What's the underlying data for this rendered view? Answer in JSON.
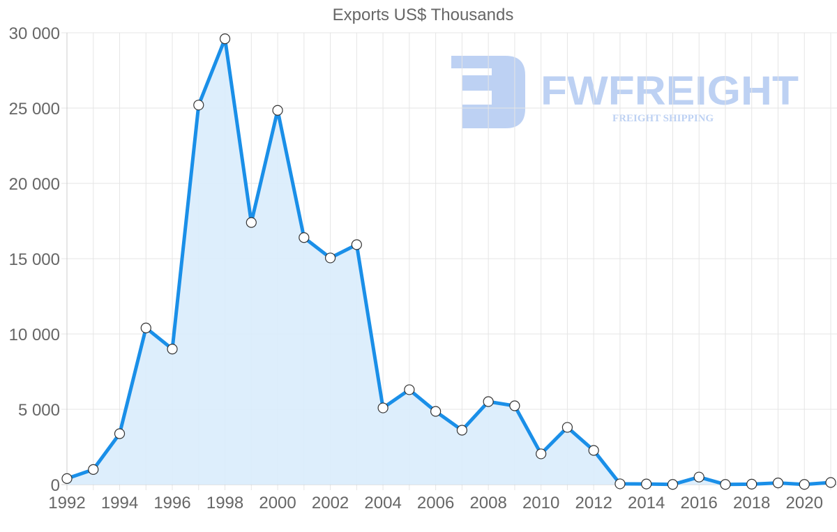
{
  "chart_data": {
    "type": "area",
    "title": "Exports US$ Thousands",
    "xlabel": "",
    "ylabel": "",
    "x": [
      1992,
      1993,
      1994,
      1995,
      1996,
      1997,
      1998,
      1999,
      2000,
      2001,
      2002,
      2003,
      2004,
      2005,
      2006,
      2007,
      2008,
      2009,
      2010,
      2011,
      2012,
      2013,
      2014,
      2015,
      2016,
      2017,
      2018,
      2019,
      2020,
      2021
    ],
    "series": [
      {
        "name": "Exports",
        "values": [
          400,
          1000,
          3380,
          10400,
          9000,
          25200,
          29600,
          17400,
          24850,
          16400,
          15050,
          15930,
          5090,
          6300,
          4860,
          3610,
          5510,
          5230,
          2040,
          3800,
          2270,
          50,
          40,
          10,
          500,
          10,
          30,
          110,
          10,
          140
        ]
      }
    ],
    "x_tick_labels": [
      "1992",
      "1994",
      "1996",
      "1998",
      "2000",
      "2002",
      "2004",
      "2006",
      "2008",
      "2010",
      "2012",
      "2014",
      "2016",
      "2018",
      "2020"
    ],
    "y_tick_labels": [
      "0",
      "5 000",
      "10 000",
      "15 000",
      "20 000",
      "25 000",
      "30 000"
    ],
    "y_ticks": [
      0,
      5000,
      10000,
      15000,
      20000,
      25000,
      30000
    ],
    "ylim": [
      0,
      30000
    ],
    "grid": true,
    "legend": "none",
    "colors": {
      "line": "#1a8fe8",
      "fill": "#d9ecfc",
      "point_fill": "#ffffff",
      "point_stroke": "#333333"
    }
  },
  "watermark": {
    "brand": "FWFREIGHT",
    "tagline": "FREIGHT SHIPPING",
    "color": "#6f9be6"
  }
}
